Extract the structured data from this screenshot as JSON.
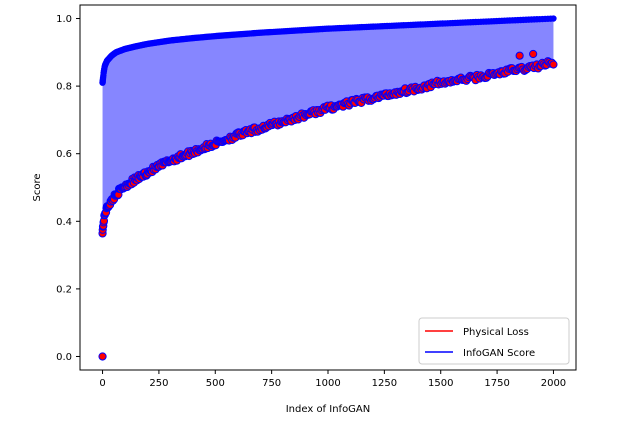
{
  "chart_data": {
    "type": "scatter",
    "title": "",
    "xlabel": "Index of InfoGAN",
    "ylabel": "Score",
    "xlim": [
      -100,
      2100
    ],
    "ylim": [
      -0.04,
      1.04
    ],
    "xticks": [
      0,
      250,
      500,
      750,
      1000,
      1250,
      1500,
      1750,
      2000
    ],
    "xtick_labels": [
      "0",
      "250",
      "500",
      "750",
      "1000",
      "1250",
      "1500",
      "1750",
      "2000"
    ],
    "yticks": [
      0.0,
      0.2,
      0.4,
      0.6,
      0.8,
      1.0
    ],
    "ytick_labels": [
      "0.0",
      "0.2",
      "0.4",
      "0.6",
      "0.8",
      "1.0"
    ],
    "grid": false,
    "legend_position": "lower-right",
    "fill_between": {
      "from_series": "Physical Loss",
      "to_series": "InfoGAN Score",
      "color": "#8080ff"
    },
    "series": [
      {
        "name": "InfoGAN Score",
        "color": "#0000ff",
        "marker_face": "#0000ff",
        "x": [
          0,
          5,
          10,
          20,
          40,
          60,
          100,
          150,
          200,
          300,
          400,
          500,
          600,
          700,
          800,
          900,
          1000,
          1100,
          1200,
          1300,
          1400,
          1500,
          1600,
          1700,
          1800,
          1900,
          2000
        ],
        "y": [
          0.81,
          0.84,
          0.86,
          0.875,
          0.89,
          0.9,
          0.91,
          0.918,
          0.925,
          0.935,
          0.942,
          0.948,
          0.953,
          0.958,
          0.962,
          0.966,
          0.97,
          0.973,
          0.976,
          0.979,
          0.982,
          0.985,
          0.988,
          0.991,
          0.994,
          0.997,
          1.0
        ]
      },
      {
        "name": "Physical Loss",
        "color": "#ff0000",
        "marker_face": "#ff0000",
        "marker_edge": "#0000ff",
        "x": [
          0,
          5,
          10,
          20,
          40,
          60,
          100,
          150,
          200,
          300,
          400,
          500,
          600,
          700,
          800,
          900,
          1000,
          1100,
          1200,
          1300,
          1400,
          1500,
          1600,
          1700,
          1800,
          1900,
          2000
        ],
        "y": [
          0.37,
          0.4,
          0.42,
          0.44,
          0.46,
          0.48,
          0.505,
          0.525,
          0.545,
          0.58,
          0.605,
          0.63,
          0.655,
          0.675,
          0.695,
          0.715,
          0.735,
          0.75,
          0.765,
          0.78,
          0.795,
          0.81,
          0.82,
          0.83,
          0.845,
          0.855,
          0.87
        ],
        "outliers": {
          "x": [
            0,
            1850,
            1910
          ],
          "y": [
            0.0,
            0.89,
            0.895
          ]
        }
      }
    ]
  }
}
